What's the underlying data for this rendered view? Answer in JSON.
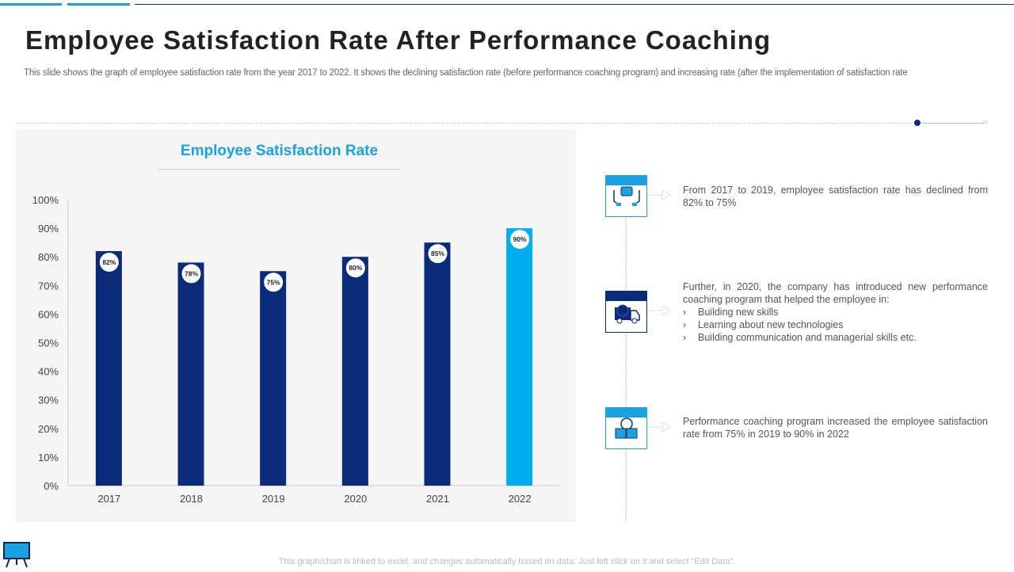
{
  "title": "Employee Satisfaction Rate After Performance Coaching",
  "subtitle": "This slide shows the graph of employee satisfaction rate from the year 2017 to 2022. It shows the declining satisfaction rate (before performance coaching program) and increasing rate (after the implementation of satisfaction rate",
  "colors": {
    "accent": "#1aa3e0",
    "navy": "#0a2a7a",
    "highlight": "#00aeef"
  },
  "chart_data": {
    "type": "bar",
    "title": "Employee Satisfaction Rate",
    "categories": [
      "2017",
      "2018",
      "2019",
      "2020",
      "2021",
      "2022"
    ],
    "values": [
      82,
      78,
      75,
      80,
      85,
      90
    ],
    "data_labels": [
      "82%",
      "78%",
      "75%",
      "80%",
      "85%",
      "90%"
    ],
    "yticks": [
      "0%",
      "10%",
      "20%",
      "30%",
      "40%",
      "50%",
      "60%",
      "70%",
      "80%",
      "90%",
      "100%"
    ],
    "ylim": [
      0,
      100
    ],
    "grid": false,
    "xlabel": "",
    "ylabel": ""
  },
  "timeline": [
    {
      "icon": "hands-box-icon",
      "text": "From 2017 to 2019, employee satisfaction rate has declined from 82% to 75%"
    },
    {
      "icon": "delivery-truck-clock-icon",
      "text": "Further, in 2020, the company has introduced new performance coaching program that helped the employee in:",
      "bullets": [
        "Building new skills",
        "Learning about new technologies",
        "Building communication and managerial  skills etc."
      ]
    },
    {
      "icon": "alarm-clock-boxes-icon",
      "text": "Performance coaching program increased the employee satisfaction rate from 75% in 2019 to 90% in 2022"
    }
  ],
  "footer": "This graph/chart is linked to excel, and changes automatically based on data. Just left click on it and select “Edit Data”."
}
